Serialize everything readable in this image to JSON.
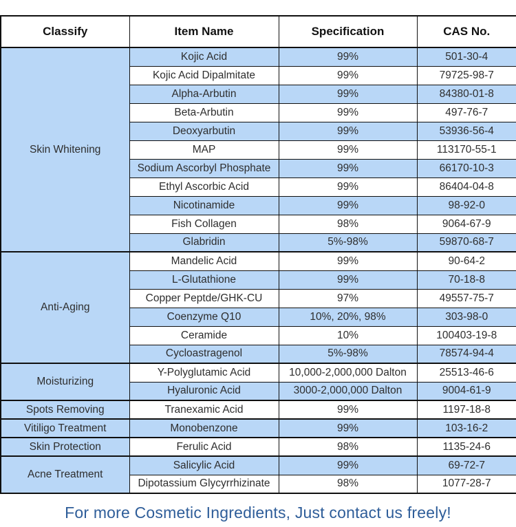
{
  "table": {
    "columns": [
      "Classify",
      "Item Name",
      "Specification",
      "CAS No."
    ],
    "categories": [
      {
        "classify": "Skin Whitening",
        "items": [
          {
            "name": "Kojic Acid",
            "spec": "99%",
            "cas": "501-30-4"
          },
          {
            "name": "Kojic Acid Dipalmitate",
            "spec": "99%",
            "cas": "79725-98-7"
          },
          {
            "name": "Alpha-Arbutin",
            "spec": "99%",
            "cas": "84380-01-8"
          },
          {
            "name": "Beta-Arbutin",
            "spec": "99%",
            "cas": "497-76-7"
          },
          {
            "name": "Deoxyarbutin",
            "spec": "99%",
            "cas": "53936-56-4"
          },
          {
            "name": "MAP",
            "spec": "99%",
            "cas": "113170-55-1"
          },
          {
            "name": "Sodium Ascorbyl Phosphate",
            "spec": "99%",
            "cas": "66170-10-3"
          },
          {
            "name": "Ethyl Ascorbic Acid",
            "spec": "99%",
            "cas": "86404-04-8"
          },
          {
            "name": "Nicotinamide",
            "spec": "99%",
            "cas": "98-92-0"
          },
          {
            "name": "Fish Collagen",
            "spec": "98%",
            "cas": "9064-67-9"
          },
          {
            "name": "Glabridin",
            "spec": "5%-98%",
            "cas": "59870-68-7"
          }
        ]
      },
      {
        "classify": "Anti-Aging",
        "items": [
          {
            "name": "Mandelic Acid",
            "spec": "99%",
            "cas": "90-64-2"
          },
          {
            "name": "L-Glutathione",
            "spec": "99%",
            "cas": "70-18-8"
          },
          {
            "name": "Copper Peptde/GHK-CU",
            "spec": "97%",
            "cas": "49557-75-7"
          },
          {
            "name": "Coenzyme Q10",
            "spec": "10%, 20%, 98%",
            "cas": "303-98-0"
          },
          {
            "name": "Ceramide",
            "spec": "10%",
            "cas": "100403-19-8"
          },
          {
            "name": "Cycloastragenol",
            "spec": "5%-98%",
            "cas": "78574-94-4"
          }
        ]
      },
      {
        "classify": "Moisturizing",
        "items": [
          {
            "name": "Y-Polyglutamic Acid",
            "spec": "10,000-2,000,000 Dalton",
            "cas": "25513-46-6"
          },
          {
            "name": "Hyaluronic Acid",
            "spec": "3000-2,000,000 Dalton",
            "cas": "9004-61-9"
          }
        ]
      },
      {
        "classify": "Spots Removing",
        "items": [
          {
            "name": "Tranexamic Acid",
            "spec": "99%",
            "cas": "1197-18-8"
          }
        ]
      },
      {
        "classify": "Vitiligo Treatment",
        "items": [
          {
            "name": "Monobenzone",
            "spec": "99%",
            "cas": "103-16-2"
          }
        ]
      },
      {
        "classify": "Skin Protection",
        "items": [
          {
            "name": "Ferulic Acid",
            "spec": "98%",
            "cas": "1135-24-6"
          }
        ]
      },
      {
        "classify": "Acne Treatment",
        "items": [
          {
            "name": "Salicylic Acid",
            "spec": "99%",
            "cas": "69-72-7"
          },
          {
            "name": "Dipotassium Glycyrrhizinate",
            "spec": "98%",
            "cas": "1077-28-7"
          }
        ]
      }
    ]
  },
  "footer": {
    "message": "For more Cosmetic Ingredients, Just contact us freely!"
  },
  "colors": {
    "row_highlight": "#B9D7F7",
    "border": "#0F0F0F",
    "footer_text": "#2E5D99"
  }
}
